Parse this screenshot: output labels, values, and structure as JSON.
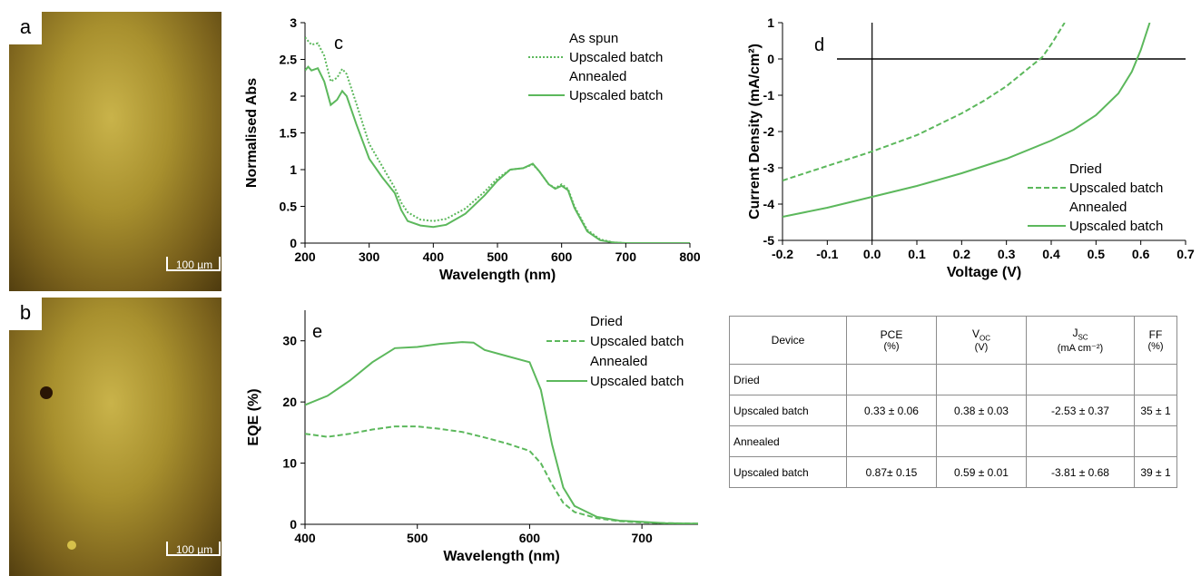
{
  "panels": {
    "a": {
      "label": "a",
      "scale_label": "100 µm"
    },
    "b": {
      "label": "b",
      "scale_label": "100 µm"
    }
  },
  "colors": {
    "green": "#5cb85c",
    "axis": "#000000"
  },
  "chart_data": [
    {
      "id": "c",
      "type": "line",
      "panel_label": "c",
      "xlabel": "Wavelength (nm)",
      "ylabel": "Normalised Abs",
      "xlim": [
        200,
        800
      ],
      "ylim": [
        0,
        3
      ],
      "xticks": [
        200,
        300,
        400,
        500,
        600,
        700,
        800
      ],
      "yticks": [
        0,
        0.5,
        1,
        1.5,
        2,
        2.5,
        3
      ],
      "ytick_labels": [
        "0",
        "0.5",
        "1",
        "1.5",
        "2",
        "2.5",
        "3"
      ],
      "legend": {
        "position": "top-right",
        "headers": [
          "As spun",
          "Annealed"
        ]
      },
      "series": [
        {
          "name": "Upscaled batch",
          "group": "As spun",
          "style": "dotted",
          "x": [
            200,
            205,
            210,
            220,
            230,
            240,
            250,
            258,
            265,
            280,
            300,
            320,
            340,
            350,
            360,
            380,
            400,
            420,
            450,
            480,
            500,
            520,
            540,
            555,
            565,
            580,
            590,
            600,
            610,
            620,
            640,
            660,
            680,
            700,
            750,
            800
          ],
          "y": [
            2.8,
            2.75,
            2.7,
            2.72,
            2.55,
            2.2,
            2.25,
            2.37,
            2.3,
            1.9,
            1.35,
            1.05,
            0.75,
            0.55,
            0.42,
            0.32,
            0.3,
            0.33,
            0.47,
            0.7,
            0.88,
            1.0,
            1.02,
            1.07,
            0.98,
            0.8,
            0.75,
            0.8,
            0.74,
            0.5,
            0.18,
            0.05,
            0.01,
            0.0,
            0.0,
            0.0
          ]
        },
        {
          "name": "Upscaled batch",
          "group": "Annealed",
          "style": "solid",
          "x": [
            200,
            205,
            210,
            220,
            230,
            240,
            250,
            258,
            265,
            280,
            300,
            320,
            340,
            350,
            360,
            380,
            400,
            420,
            450,
            480,
            500,
            520,
            540,
            555,
            565,
            580,
            590,
            600,
            610,
            620,
            640,
            660,
            680,
            700,
            750,
            800
          ],
          "y": [
            2.35,
            2.4,
            2.35,
            2.38,
            2.2,
            1.88,
            1.95,
            2.07,
            2.0,
            1.62,
            1.15,
            0.9,
            0.68,
            0.45,
            0.3,
            0.24,
            0.22,
            0.25,
            0.4,
            0.65,
            0.85,
            1.0,
            1.02,
            1.08,
            0.98,
            0.8,
            0.74,
            0.78,
            0.72,
            0.48,
            0.16,
            0.04,
            0.01,
            0.0,
            0.0,
            0.0
          ]
        }
      ]
    },
    {
      "id": "d",
      "type": "line",
      "panel_label": "d",
      "xlabel": "Voltage (V)",
      "ylabel": "Current Density (mA/cm²)",
      "xlim": [
        -0.2,
        0.7
      ],
      "ylim": [
        -5,
        1
      ],
      "xticks": [
        -0.2,
        -0.1,
        0,
        0.1,
        0.2,
        0.3,
        0.4,
        0.5,
        0.6,
        0.7
      ],
      "xtick_labels": [
        "-0.2",
        "-0.1",
        "0.0",
        "0.1",
        "0.2",
        "0.3",
        "0.4",
        "0.5",
        "0.6",
        "0.7"
      ],
      "yticks": [
        -5,
        -4,
        -3,
        -2,
        -1,
        0,
        1
      ],
      "legend": {
        "position": "bottom-right",
        "headers": [
          "Dried",
          "Annealed"
        ]
      },
      "series": [
        {
          "name": "Upscaled batch",
          "group": "Dried",
          "style": "dashed",
          "x": [
            -0.2,
            -0.1,
            0.0,
            0.1,
            0.2,
            0.25,
            0.3,
            0.35,
            0.38,
            0.4,
            0.43
          ],
          "y": [
            -3.35,
            -2.95,
            -2.55,
            -2.1,
            -1.5,
            -1.15,
            -0.75,
            -0.25,
            0.05,
            0.4,
            1.0
          ]
        },
        {
          "name": "Upscaled batch",
          "group": "Annealed",
          "style": "solid",
          "x": [
            -0.2,
            -0.1,
            0.0,
            0.1,
            0.2,
            0.3,
            0.4,
            0.45,
            0.5,
            0.55,
            0.58,
            0.6,
            0.62
          ],
          "y": [
            -4.35,
            -4.1,
            -3.8,
            -3.5,
            -3.15,
            -2.75,
            -2.25,
            -1.95,
            -1.55,
            -0.95,
            -0.35,
            0.25,
            1.0
          ]
        }
      ]
    },
    {
      "id": "e",
      "type": "line",
      "panel_label": "e",
      "xlabel": "Wavelength (nm)",
      "ylabel": "EQE (%)",
      "xlim": [
        400,
        750
      ],
      "ylim": [
        0,
        35
      ],
      "xticks": [
        400,
        500,
        600,
        700
      ],
      "yticks": [
        0,
        10,
        20,
        30
      ],
      "legend": {
        "position": "top-right",
        "headers": [
          "Dried",
          "Annealed"
        ]
      },
      "series": [
        {
          "name": "Upscaled batch",
          "group": "Dried",
          "style": "dashed",
          "x": [
            400,
            420,
            440,
            460,
            480,
            500,
            520,
            540,
            560,
            580,
            600,
            610,
            620,
            630,
            640,
            660,
            680,
            700,
            720,
            750
          ],
          "y": [
            14.8,
            14.3,
            14.8,
            15.5,
            16.0,
            16.0,
            15.6,
            15.1,
            14.2,
            13.2,
            12.0,
            10.0,
            6.5,
            3.5,
            2.0,
            1.0,
            0.5,
            0.3,
            0.2,
            0.1
          ]
        },
        {
          "name": "Upscaled batch",
          "group": "Annealed",
          "style": "solid",
          "x": [
            400,
            420,
            440,
            460,
            480,
            500,
            520,
            540,
            550,
            560,
            580,
            600,
            610,
            620,
            630,
            640,
            660,
            680,
            700,
            720,
            750
          ],
          "y": [
            19.5,
            21.0,
            23.5,
            26.5,
            28.8,
            29.0,
            29.5,
            29.8,
            29.7,
            28.5,
            27.5,
            26.5,
            22.0,
            13.0,
            6.0,
            3.0,
            1.2,
            0.6,
            0.4,
            0.2,
            0.1
          ]
        }
      ]
    },
    {
      "id": "table",
      "type": "table",
      "columns": [
        {
          "main": "Device",
          "sub": "",
          "unit": ""
        },
        {
          "main": "PCE",
          "sub": "",
          "unit": "(%)"
        },
        {
          "main": "V",
          "sub": "OC",
          "unit": "(V)"
        },
        {
          "main": "J",
          "sub": "SC",
          "unit": "(mA cm⁻²)"
        },
        {
          "main": "FF",
          "sub": "",
          "unit": "(%)"
        }
      ],
      "rows": [
        [
          "Dried",
          "",
          "",
          "",
          ""
        ],
        [
          "Upscaled batch",
          "0.33 ± 0.06",
          "0.38 ± 0.03",
          "-2.53 ± 0.37",
          "35 ± 1"
        ],
        [
          "Annealed",
          "",
          "",
          "",
          ""
        ],
        [
          "Upscaled batch",
          "0.87± 0.15",
          "0.59 ± 0.01",
          "-3.81 ± 0.68",
          "39 ± 1"
        ]
      ]
    }
  ]
}
